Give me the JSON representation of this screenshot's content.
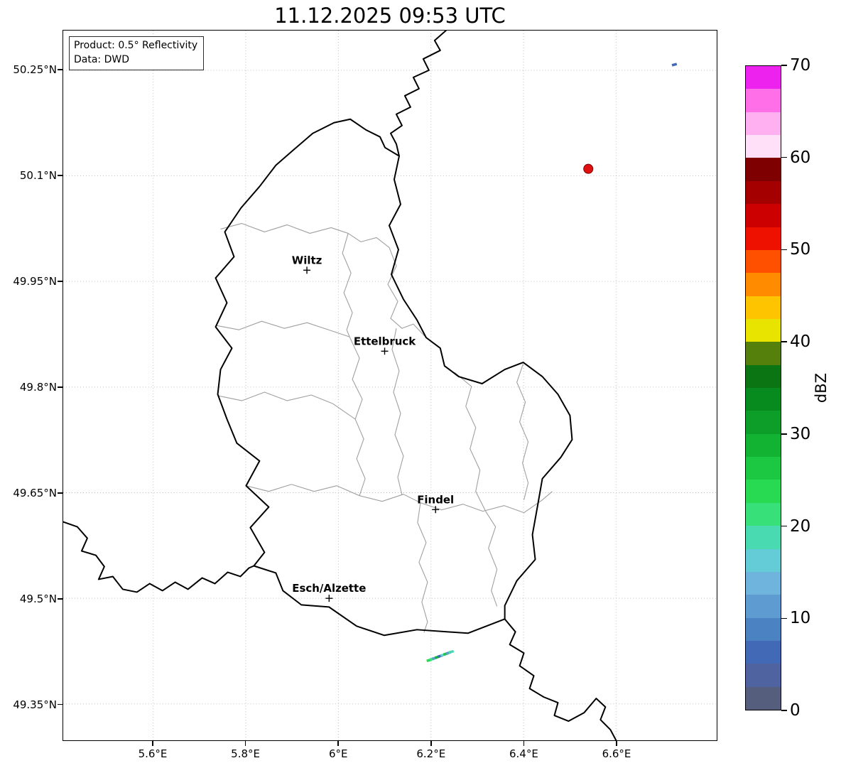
{
  "title": "11.12.2025 09:53 UTC",
  "info_box": {
    "line1": "Product: 0.5° Reflectivity",
    "line2": "Data: DWD"
  },
  "axes": {
    "lat_ticks": [
      {
        "label": "50.25°N",
        "value": 50.25
      },
      {
        "label": "50.1°N",
        "value": 50.1
      },
      {
        "label": "49.95°N",
        "value": 49.95
      },
      {
        "label": "49.8°N",
        "value": 49.8
      },
      {
        "label": "49.65°N",
        "value": 49.65
      },
      {
        "label": "49.5°N",
        "value": 49.5
      },
      {
        "label": "49.35°N",
        "value": 49.35
      }
    ],
    "lon_ticks": [
      {
        "label": "5.6°E",
        "value": 5.6
      },
      {
        "label": "5.8°E",
        "value": 5.8
      },
      {
        "label": "6°E",
        "value": 6.0
      },
      {
        "label": "6.2°E",
        "value": 6.2
      },
      {
        "label": "6.4°E",
        "value": 6.4
      },
      {
        "label": "6.6°E",
        "value": 6.6
      }
    ]
  },
  "colorbar": {
    "label": "dBZ",
    "min": 0,
    "max": 70,
    "ticks": [
      0,
      10,
      20,
      30,
      40,
      50,
      60,
      70
    ],
    "colors_bottom_to_top": [
      "#565e7d",
      "#4f63a0",
      "#4269b5",
      "#4b82c2",
      "#5d9bd1",
      "#6fb4dc",
      "#63ccd6",
      "#49dab2",
      "#37e078",
      "#27da52",
      "#1cc841",
      "#12b232",
      "#0c9e28",
      "#078a1e",
      "#0b7514",
      "#56800c",
      "#e8e400",
      "#ffc400",
      "#ff8c00",
      "#ff5000",
      "#ee1100",
      "#cc0000",
      "#a50000",
      "#7e0000",
      "#ffe0f8",
      "#ffb0f0",
      "#ff70e8",
      "#ee22ee"
    ]
  },
  "map": {
    "cities": [
      {
        "name": "Wiltz",
        "lon": 5.932,
        "lat": 49.966
      },
      {
        "name": "Ettelbruck",
        "lon": 6.1,
        "lat": 49.851
      },
      {
        "name": "Findel",
        "lon": 6.21,
        "lat": 49.626
      },
      {
        "name": "Esch/Alzette",
        "lon": 5.98,
        "lat": 49.5
      }
    ],
    "radar_site_marker": {
      "lon": 6.54,
      "lat": 50.11,
      "color": "#e01010"
    },
    "echo_cells": [
      {
        "lon": 6.196,
        "lat": 49.412,
        "dbz": 24
      },
      {
        "lon": 6.202,
        "lat": 49.4135,
        "dbz": 20
      },
      {
        "lon": 6.208,
        "lat": 49.415,
        "dbz": 11
      },
      {
        "lon": 6.214,
        "lat": 49.4165,
        "dbz": 29
      },
      {
        "lon": 6.22,
        "lat": 49.418,
        "dbz": 6
      },
      {
        "lon": 6.226,
        "lat": 49.4195,
        "dbz": 16
      },
      {
        "lon": 6.232,
        "lat": 49.421,
        "dbz": 26
      },
      {
        "lon": 6.238,
        "lat": 49.4225,
        "dbz": 12
      },
      {
        "lon": 6.244,
        "lat": 49.424,
        "dbz": 18
      },
      {
        "lon": 6.726,
        "lat": 50.258,
        "dbz": 7
      }
    ]
  },
  "chart_data": {
    "type": "heatmap",
    "title": "11.12.2025 09:53 UTC",
    "product": "0.5° Reflectivity",
    "data_source": "DWD",
    "colorbar_label": "dBZ",
    "colorbar_range": [
      0,
      70
    ],
    "colorbar_ticks": [
      0,
      10,
      20,
      30,
      40,
      50,
      60,
      70
    ],
    "lon_axis_ticks_deg_e": [
      5.6,
      5.8,
      6.0,
      6.2,
      6.4,
      6.6
    ],
    "lat_axis_ticks_deg_n": [
      50.25,
      50.1,
      49.95,
      49.8,
      49.65,
      49.5,
      49.35
    ],
    "labeled_cities": [
      "Wiltz",
      "Ettelbruck",
      "Findel",
      "Esch/Alzette"
    ],
    "points_lon_lat_dbz": [
      [
        6.196,
        49.412,
        24
      ],
      [
        6.202,
        49.4135,
        20
      ],
      [
        6.208,
        49.415,
        11
      ],
      [
        6.214,
        49.4165,
        29
      ],
      [
        6.22,
        49.418,
        6
      ],
      [
        6.226,
        49.4195,
        16
      ],
      [
        6.232,
        49.421,
        26
      ],
      [
        6.238,
        49.4225,
        12
      ],
      [
        6.244,
        49.424,
        18
      ],
      [
        6.726,
        50.258,
        7
      ]
    ],
    "radar_site_lon_lat": [
      6.54,
      50.11
    ]
  }
}
